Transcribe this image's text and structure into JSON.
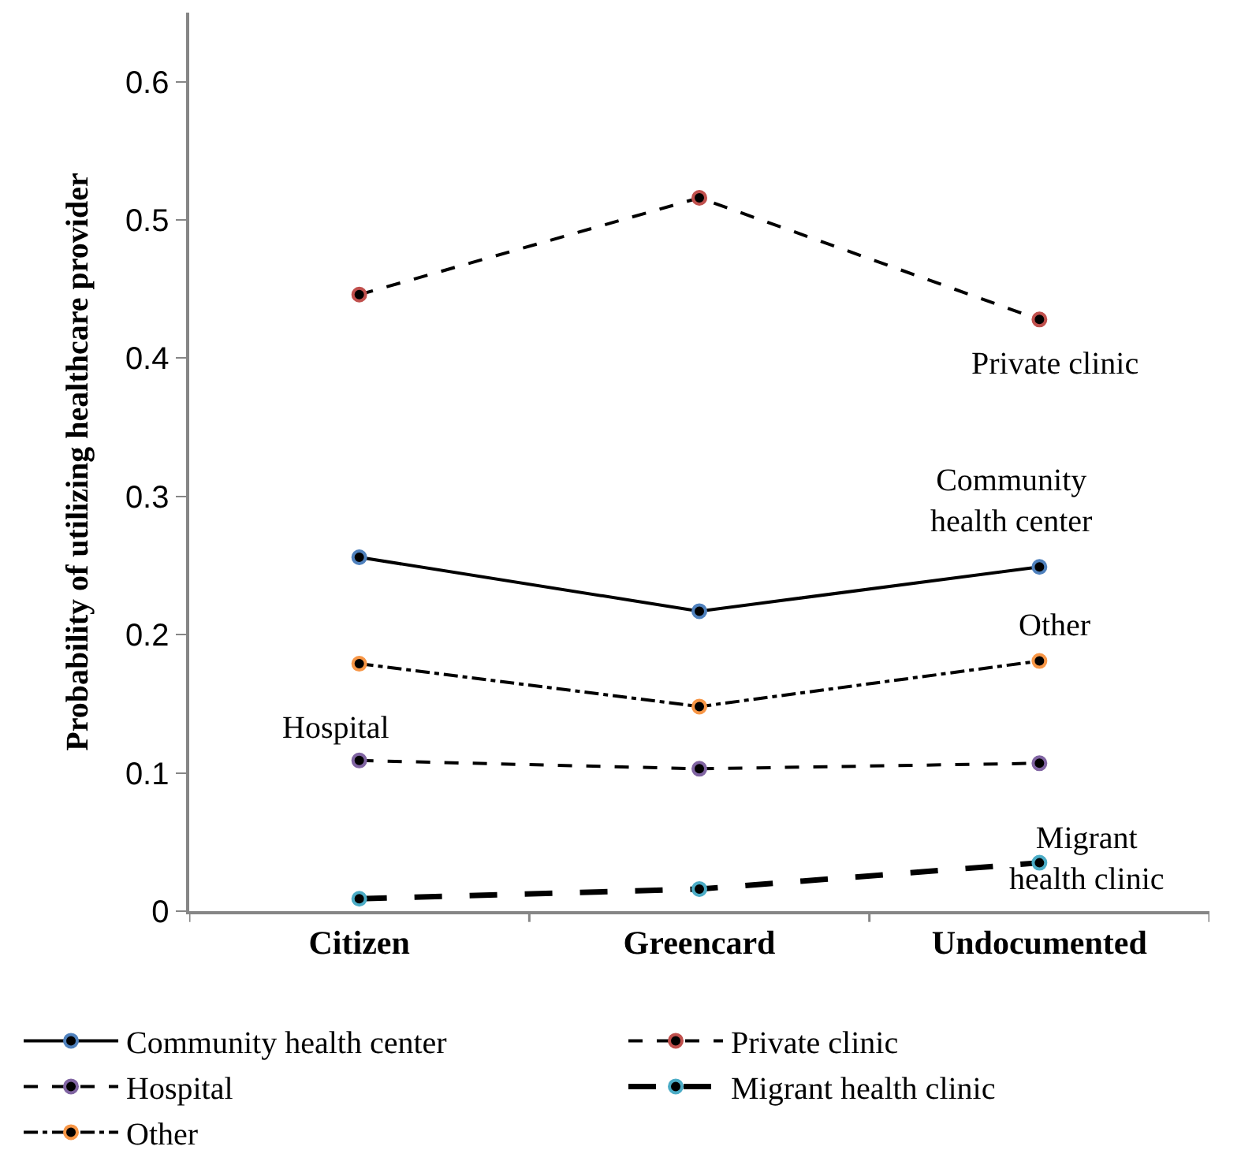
{
  "chart_data": {
    "type": "line",
    "ylabel": "Probability of utilizing healthcare provider",
    "categories": [
      "Citizen",
      "Greencard",
      "Undocumented"
    ],
    "series": [
      {
        "name": "Community health center",
        "color": "#4f81bd",
        "line_style": "solid",
        "values": [
          0.256,
          0.217,
          0.249
        ]
      },
      {
        "name": "Private clinic",
        "color": "#c0504d",
        "line_style": "dashed",
        "values": [
          0.446,
          0.516,
          0.428
        ]
      },
      {
        "name": "Hospital",
        "color": "#8064a2",
        "line_style": "dashed",
        "values": [
          0.109,
          0.103,
          0.107
        ]
      },
      {
        "name": "Migrant health clinic",
        "color": "#4bacc6",
        "line_style": "longdash",
        "values": [
          0.009,
          0.016,
          0.035
        ]
      },
      {
        "name": "Other",
        "color": "#f79646",
        "line_style": "dashdot",
        "values": [
          0.179,
          0.148,
          0.181
        ]
      }
    ],
    "annotations": [
      {
        "text": "Private clinic",
        "x": "Undocumented",
        "y": 0.428
      },
      {
        "text": "Community\nhealth center",
        "x": "Undocumented",
        "y": 0.249
      },
      {
        "text": "Other",
        "x": "Undocumented",
        "y": 0.181
      },
      {
        "text": "Hospital",
        "x": "Citizen",
        "y": 0.109
      },
      {
        "text": "Migrant\nhealth clinic",
        "x": "Undocumented",
        "y": 0.035
      }
    ],
    "ylim": [
      0,
      0.65
    ],
    "yticks": [
      0,
      0.1,
      0.2,
      0.3,
      0.4,
      0.5,
      0.6
    ],
    "marker": "circle",
    "legend": "bottom"
  }
}
